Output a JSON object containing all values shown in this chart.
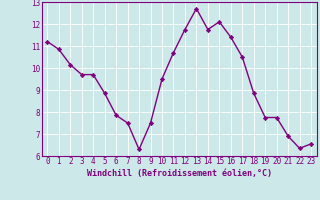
{
  "x": [
    0,
    1,
    2,
    3,
    4,
    5,
    6,
    7,
    8,
    9,
    10,
    11,
    12,
    13,
    14,
    15,
    16,
    17,
    18,
    19,
    20,
    21,
    22,
    23
  ],
  "y": [
    11.2,
    10.85,
    10.15,
    9.7,
    9.7,
    8.85,
    7.85,
    7.5,
    6.3,
    7.5,
    9.5,
    10.7,
    11.75,
    12.7,
    11.75,
    12.1,
    11.4,
    10.5,
    8.85,
    7.75,
    7.75,
    6.9,
    6.35,
    6.55
  ],
  "line_color": "#800080",
  "marker": "D",
  "marker_size": 2.2,
  "line_width": 1.0,
  "bg_color": "#cce8e8",
  "grid_color": "#ffffff",
  "xlabel": "Windchill (Refroidissement éolien,°C)",
  "xlabel_color": "#800080",
  "xlabel_fontsize": 6.0,
  "tick_color": "#800080",
  "tick_fontsize": 5.5,
  "xlim": [
    -0.5,
    23.5
  ],
  "ylim": [
    6,
    13
  ],
  "yticks": [
    6,
    7,
    8,
    9,
    10,
    11,
    12,
    13
  ],
  "xticks": [
    0,
    1,
    2,
    3,
    4,
    5,
    6,
    7,
    8,
    9,
    10,
    11,
    12,
    13,
    14,
    15,
    16,
    17,
    18,
    19,
    20,
    21,
    22,
    23
  ]
}
